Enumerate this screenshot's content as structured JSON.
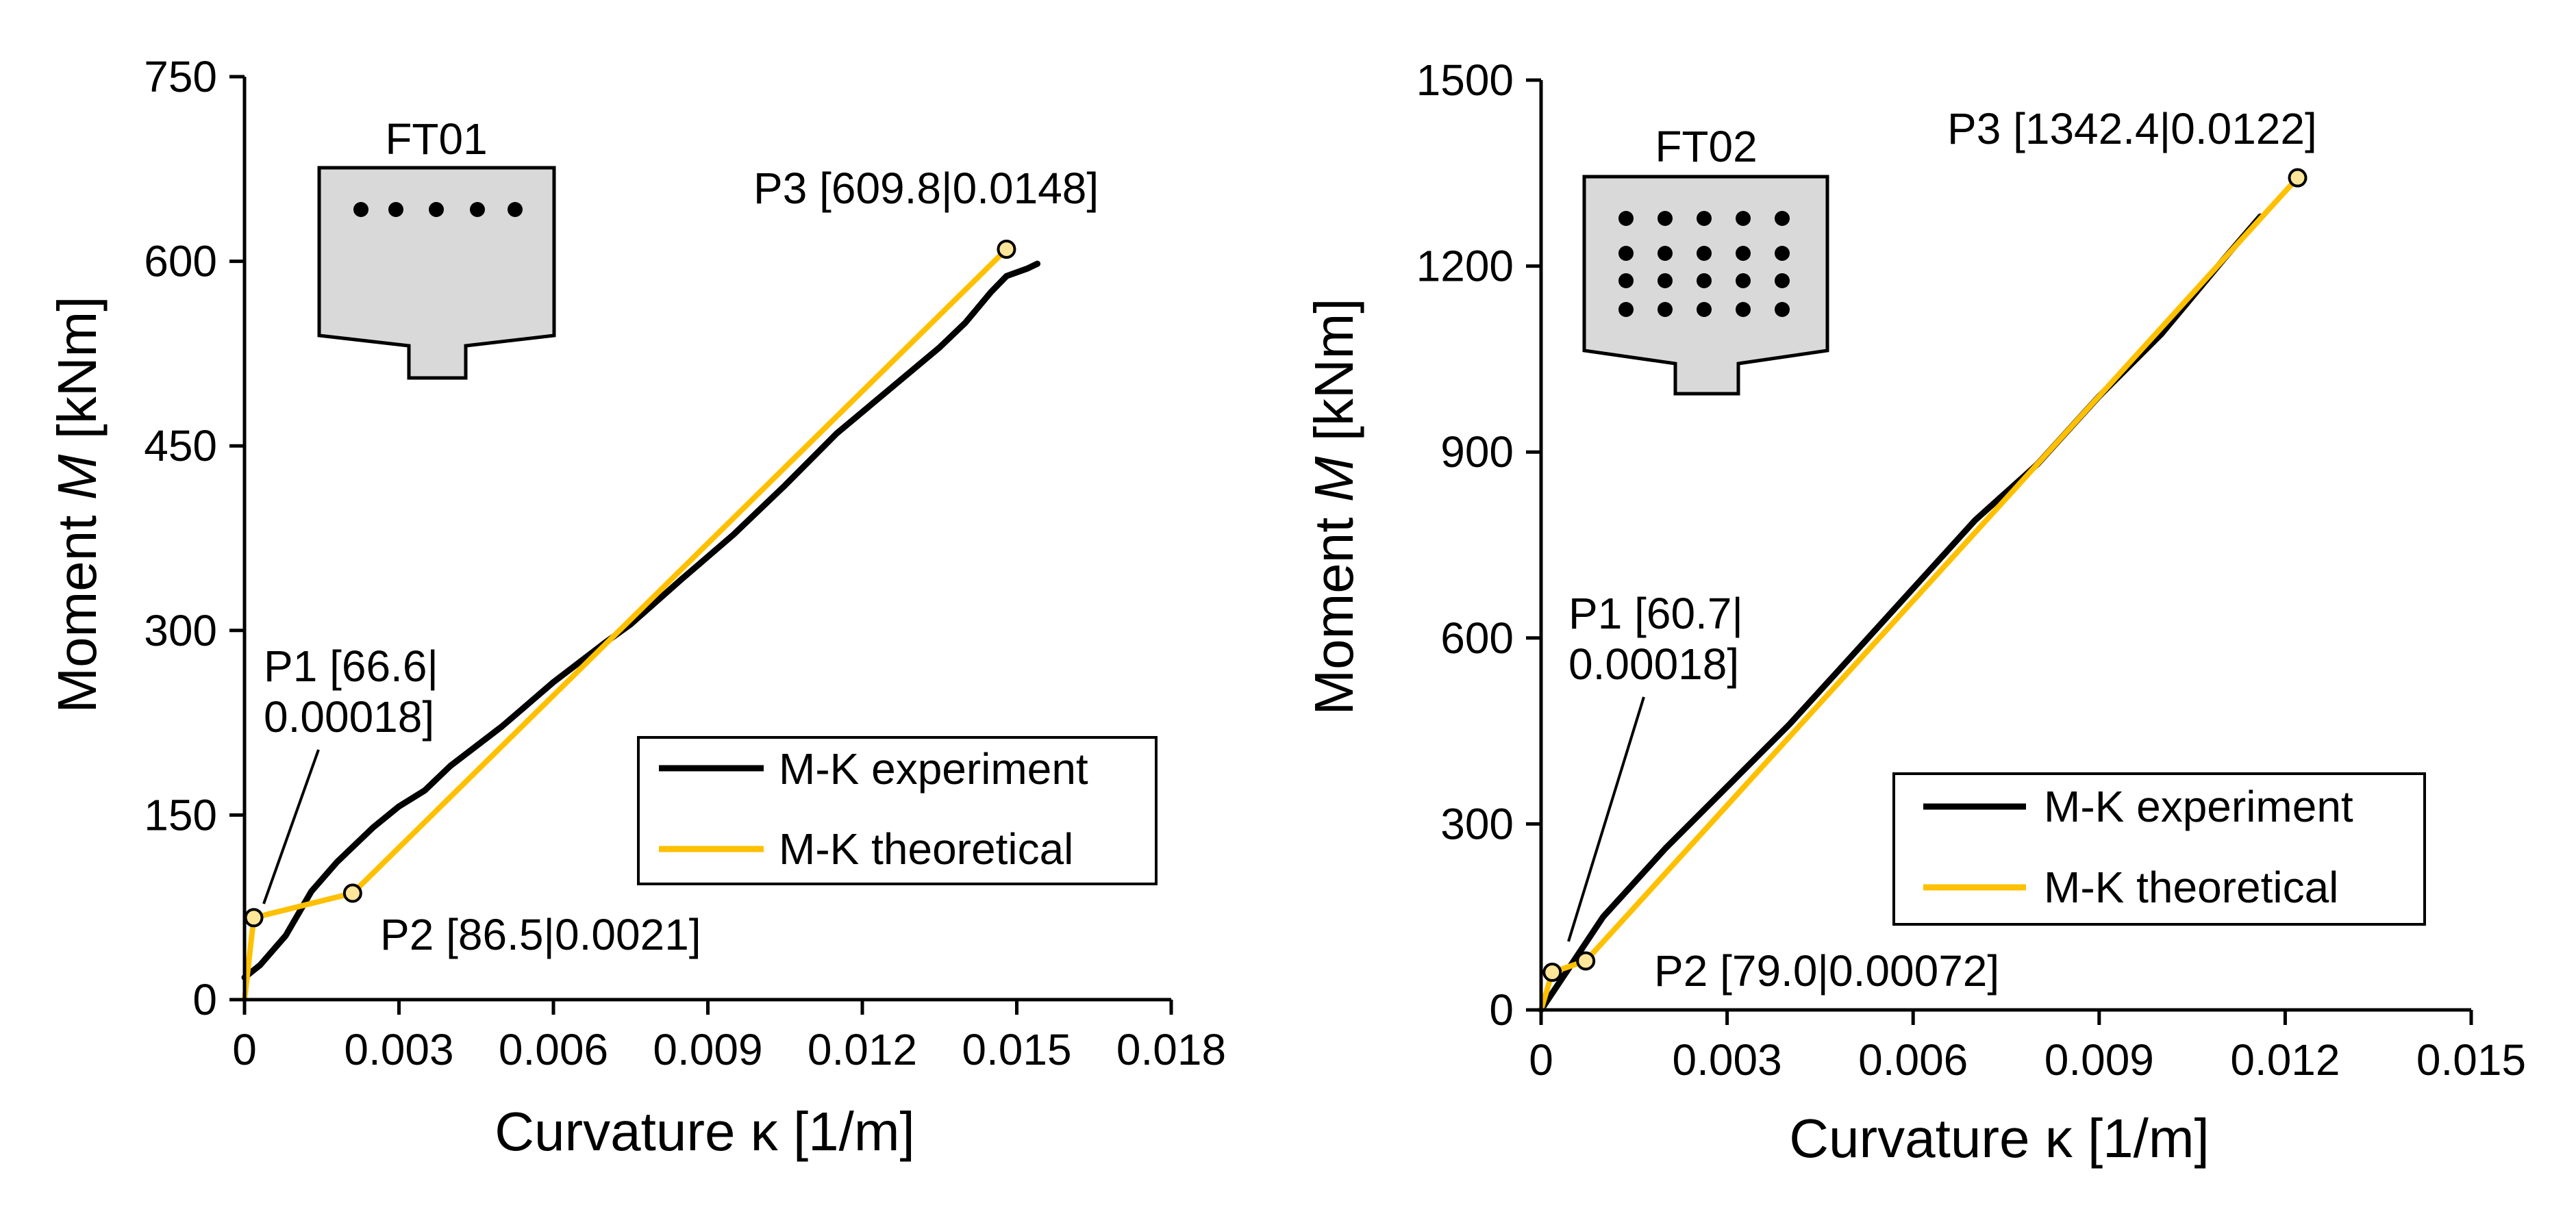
{
  "chart_data": [
    {
      "type": "line",
      "section_label": "FT01",
      "xlabel": "Curvature κ [1/m]",
      "ylabel": {
        "prefix": "Moment ",
        "symbol": "M",
        "suffix": " [kNm]"
      },
      "xlim": [
        0,
        0.018
      ],
      "ylim": [
        0,
        750
      ],
      "xticks": [
        "0",
        "0.003",
        "0.006",
        "0.009",
        "0.012",
        "0.015",
        "0.018"
      ],
      "yticks": [
        "0",
        "150",
        "300",
        "450",
        "600",
        "750"
      ],
      "legend": {
        "position": "bottom-right",
        "entries": [
          "M-K experiment",
          "M-K theoretical"
        ]
      },
      "colors": {
        "experiment": "#000000",
        "theoretical": "#FFC000",
        "marker_fill": "#FFE699"
      },
      "annotation_points": [
        {
          "name": "P1",
          "x": 0.00018,
          "y": 66.6,
          "label_lines": [
            "P1 [66.6|",
            "0.00018]"
          ]
        },
        {
          "name": "P2",
          "x": 0.0021,
          "y": 86.5,
          "label_lines": [
            "P2 [86.5|0.0021]"
          ]
        },
        {
          "name": "P3",
          "x": 0.0148,
          "y": 609.8,
          "label_lines": [
            "P3 [609.8|0.0148]"
          ]
        }
      ],
      "series": [
        {
          "name": "M-K theoretical",
          "x": [
            0,
            0.00018,
            0.0021,
            0.0148
          ],
          "y": [
            0,
            66.6,
            86.5,
            609.8
          ]
        },
        {
          "name": "M-K experiment",
          "x": [
            0,
            0.0003,
            0.0008,
            0.0013,
            0.0018,
            0.0025,
            0.003,
            0.0035,
            0.004,
            0.005,
            0.006,
            0.007,
            0.0075,
            0.0085,
            0.0095,
            0.0105,
            0.0115,
            0.0125,
            0.0135,
            0.014,
            0.0145,
            0.0148,
            0.0152,
            0.0154
          ],
          "y": [
            18,
            28,
            52,
            88,
            112,
            140,
            157,
            170,
            190,
            222,
            258,
            290,
            305,
            342,
            378,
            418,
            460,
            495,
            530,
            550,
            575,
            588,
            594,
            598
          ]
        }
      ]
    },
    {
      "type": "line",
      "section_label": "FT02",
      "xlabel": "Curvature κ [1/m]",
      "ylabel": {
        "prefix": "Moment ",
        "symbol": "M",
        "suffix": " [kNm]"
      },
      "xlim": [
        0,
        0.015
      ],
      "ylim": [
        0,
        1500
      ],
      "xticks": [
        "0",
        "0.003",
        "0.006",
        "0.009",
        "0.012",
        "0.015"
      ],
      "yticks": [
        "0",
        "300",
        "600",
        "900",
        "1200",
        "1500"
      ],
      "legend": {
        "position": "bottom-right",
        "entries": [
          "M-K experiment",
          "M-K theoretical"
        ]
      },
      "colors": {
        "experiment": "#000000",
        "theoretical": "#FFC000",
        "marker_fill": "#FFE699"
      },
      "annotation_points": [
        {
          "name": "P1",
          "x": 0.00018,
          "y": 60.7,
          "label_lines": [
            "P1 [60.7|",
            "0.00018]"
          ]
        },
        {
          "name": "P2",
          "x": 0.00072,
          "y": 79.0,
          "label_lines": [
            "P2 [79.0|0.00072]"
          ]
        },
        {
          "name": "P3",
          "x": 0.0122,
          "y": 1342.4,
          "label_lines": [
            "P3 [1342.4|0.0122]"
          ]
        }
      ],
      "series": [
        {
          "name": "M-K theoretical",
          "x": [
            0,
            0.00018,
            0.00072,
            0.0122
          ],
          "y": [
            0,
            60.7,
            79.0,
            1342.4
          ]
        },
        {
          "name": "M-K experiment",
          "x": [
            0,
            0.0005,
            0.001,
            0.002,
            0.003,
            0.004,
            0.005,
            0.006,
            0.007,
            0.008,
            0.009,
            0.01,
            0.011,
            0.0116
          ],
          "y": [
            0,
            75,
            150,
            260,
            360,
            460,
            570,
            680,
            790,
            880,
            990,
            1090,
            1210,
            1280
          ]
        }
      ]
    }
  ]
}
